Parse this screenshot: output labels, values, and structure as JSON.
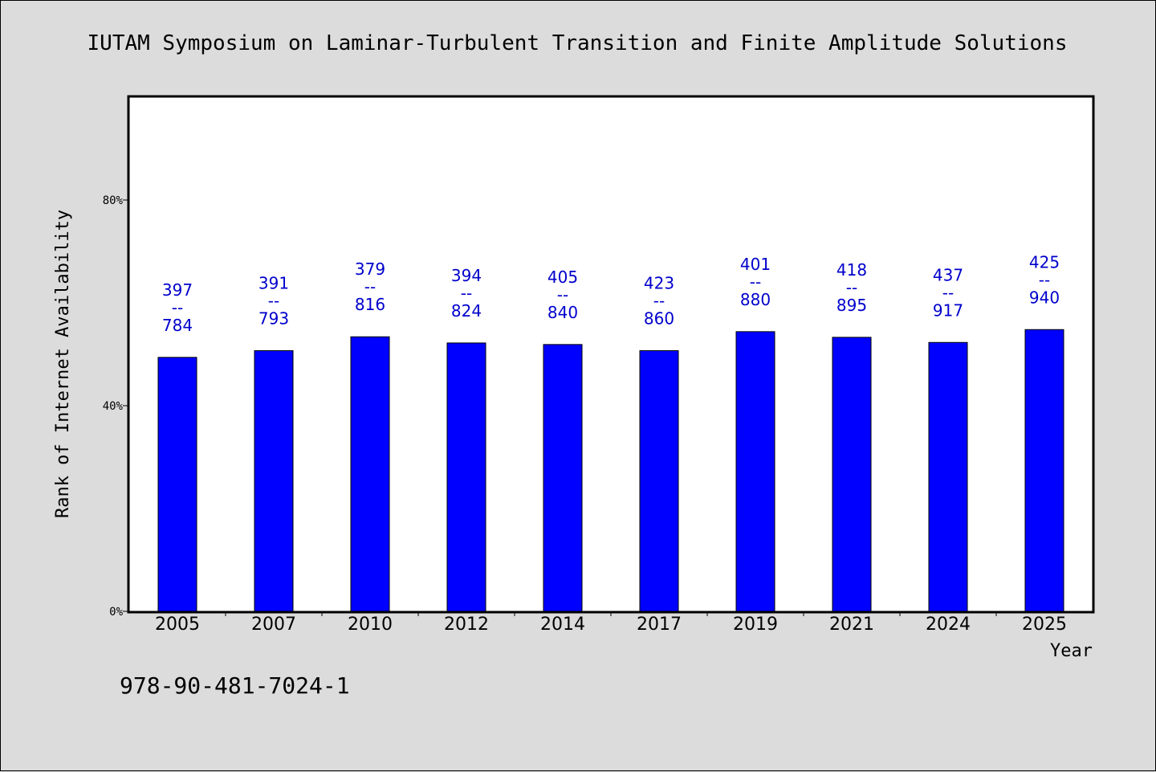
{
  "chart_data": {
    "type": "bar",
    "title": "IUTAM Symposium on Laminar-Turbulent Transition and Finite Amplitude Solutions",
    "xlabel": "Year",
    "ylabel": "Rank of Internet Availability",
    "ylim": [
      0,
      100
    ],
    "yticks": [
      {
        "value": 0,
        "label": "0%"
      },
      {
        "value": 40,
        "label": "40%"
      },
      {
        "value": 80,
        "label": "80%"
      }
    ],
    "categories": [
      "2005",
      "2007",
      "2010",
      "2012",
      "2014",
      "2017",
      "2019",
      "2021",
      "2024",
      "2025"
    ],
    "values": [
      49.4,
      50.7,
      53.4,
      52.2,
      51.9,
      50.7,
      54.4,
      53.3,
      52.3,
      54.8
    ],
    "data_labels": [
      {
        "top": "397",
        "sep": "--",
        "bottom": "784"
      },
      {
        "top": "391",
        "sep": "--",
        "bottom": "793"
      },
      {
        "top": "379",
        "sep": "--",
        "bottom": "816"
      },
      {
        "top": "394",
        "sep": "--",
        "bottom": "824"
      },
      {
        "top": "405",
        "sep": "--",
        "bottom": "840"
      },
      {
        "top": "423",
        "sep": "--",
        "bottom": "860"
      },
      {
        "top": "401",
        "sep": "--",
        "bottom": "880"
      },
      {
        "top": "418",
        "sep": "--",
        "bottom": "895"
      },
      {
        "top": "437",
        "sep": "--",
        "bottom": "917"
      },
      {
        "top": "425",
        "sep": "--",
        "bottom": "940"
      }
    ],
    "grid": false,
    "bar_color": "#0000ff",
    "label_color": "#0000cc"
  },
  "footer": {
    "isbn": "978-90-481-7024-1"
  }
}
